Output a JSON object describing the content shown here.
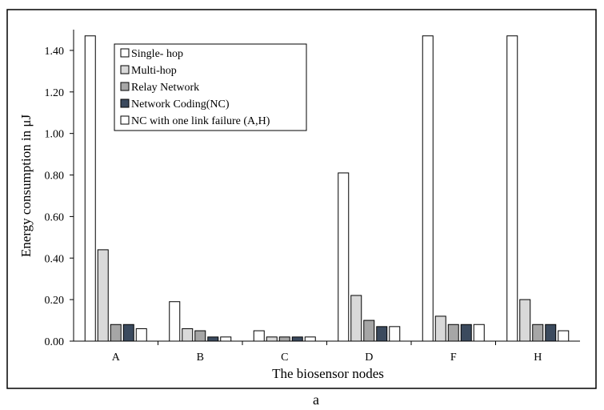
{
  "chart_data": {
    "type": "bar",
    "categories": [
      "A",
      "B",
      "C",
      "D",
      "F",
      "H"
    ],
    "series": [
      {
        "name": "Single- hop",
        "color": "#ffffff",
        "values": [
          1.47,
          0.19,
          0.05,
          0.81,
          1.47,
          1.47
        ]
      },
      {
        "name": "Multi-hop",
        "color": "#d9d9d9",
        "values": [
          0.44,
          0.06,
          0.02,
          0.22,
          0.12,
          0.2
        ]
      },
      {
        "name": "Relay Network",
        "color": "#a6a6a6",
        "values": [
          0.08,
          0.05,
          0.02,
          0.1,
          0.08,
          0.08
        ]
      },
      {
        "name": "Network Coding(NC)",
        "color": "#3b4a5e",
        "values": [
          0.08,
          0.02,
          0.02,
          0.07,
          0.08,
          0.08
        ]
      },
      {
        "name": "NC with one link failure (A,H)",
        "color": "#ffffff",
        "values": [
          0.06,
          0.02,
          0.02,
          0.07,
          0.08,
          0.05
        ]
      }
    ],
    "xlabel": "The biosensor nodes",
    "ylabel": "Energy consumption in μJ",
    "ylim": [
      0,
      1.5
    ],
    "yticks": [
      "0.00",
      "0.20",
      "0.40",
      "0.60",
      "0.80",
      "1.00",
      "1.20",
      "1.40"
    ],
    "ytick_values": [
      0,
      0.2,
      0.4,
      0.6,
      0.8,
      1.0,
      1.2,
      1.4
    ],
    "grid": false,
    "legend_position": "top-left",
    "caption": "a"
  }
}
